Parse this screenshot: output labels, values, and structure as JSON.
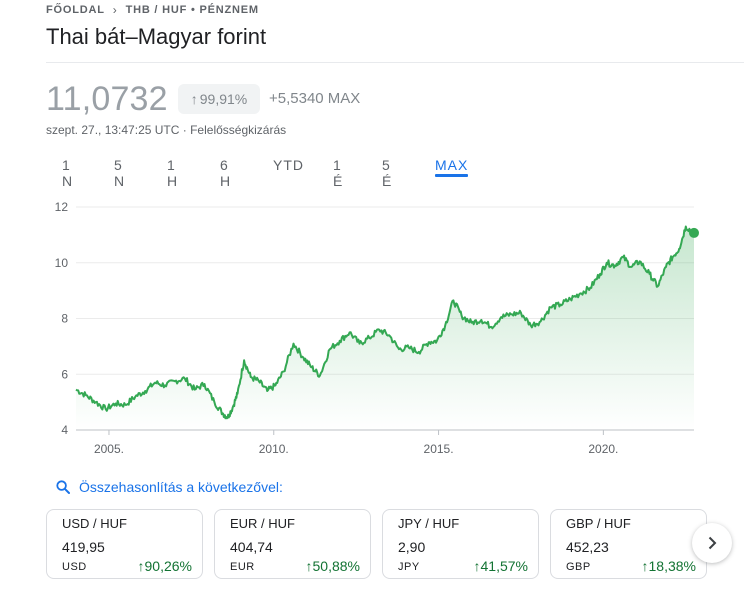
{
  "breadcrumb": {
    "home": "FŐOLDAL",
    "current": "THB / HUF • PÉNZNEM",
    "separator_icon": "chevron-right-icon"
  },
  "title": "Thai bát–Magyar forint",
  "quote": {
    "price": "11,0732",
    "percent_change": "99,91%",
    "absolute_change": "+5,5340 MAX",
    "timestamp": "szept. 27., 13:47:25 UTC",
    "separator": "·",
    "disclaimer": "Felelősségkizárás"
  },
  "tabs": [
    {
      "label": "1 N",
      "active": false
    },
    {
      "label": "5 N",
      "active": false
    },
    {
      "label": "1 H",
      "active": false
    },
    {
      "label": "6 H",
      "active": false
    },
    {
      "label": "YTD",
      "active": false
    },
    {
      "label": "1 É",
      "active": false
    },
    {
      "label": "5 É",
      "active": false
    },
    {
      "label": "MAX",
      "active": true
    }
  ],
  "chart_data": {
    "type": "area",
    "title": "",
    "xlabel": "",
    "ylabel": "",
    "ylim": [
      4,
      12
    ],
    "y_ticks": [
      4,
      6,
      8,
      10,
      12
    ],
    "x_ticks": [
      "2005.",
      "2010.",
      "2015.",
      "2020."
    ],
    "x_tick_years": [
      2005,
      2010,
      2015,
      2020
    ],
    "xlim": [
      2004.0,
      2022.75
    ],
    "grid": true,
    "line_color": "#34a853",
    "series": [
      {
        "x": [
          2004.0,
          2004.3,
          2004.6,
          2004.9,
          2005.2,
          2005.5,
          2005.8,
          2006.1,
          2006.4,
          2006.7,
          2007.0,
          2007.3,
          2007.6,
          2007.9,
          2008.2,
          2008.45,
          2008.6,
          2008.75,
          2008.9,
          2009.1,
          2009.3,
          2009.55,
          2009.8,
          2010.05,
          2010.3,
          2010.6,
          2010.9,
          2011.15,
          2011.4,
          2011.7,
          2012.0,
          2012.3,
          2012.6,
          2012.9,
          2013.2,
          2013.5,
          2013.8,
          2014.1,
          2014.4,
          2014.7,
          2014.95,
          2015.2,
          2015.45,
          2015.7,
          2016.0,
          2016.3,
          2016.6,
          2016.9,
          2017.2,
          2017.5,
          2017.8,
          2018.1,
          2018.4,
          2018.7,
          2019.0,
          2019.3,
          2019.6,
          2019.9,
          2020.1,
          2020.35,
          2020.6,
          2020.85,
          2021.1,
          2021.4,
          2021.65,
          2021.9,
          2022.1,
          2022.3,
          2022.5,
          2022.75
        ],
        "values": [
          5.45,
          5.25,
          5.0,
          4.75,
          4.95,
          4.9,
          5.2,
          5.4,
          5.7,
          5.6,
          5.75,
          5.85,
          5.45,
          5.65,
          5.0,
          4.6,
          4.45,
          4.8,
          5.3,
          6.5,
          5.9,
          5.75,
          5.4,
          5.6,
          6.1,
          7.1,
          6.6,
          6.25,
          5.95,
          6.9,
          7.2,
          7.5,
          7.1,
          7.3,
          7.6,
          7.4,
          6.9,
          6.95,
          6.8,
          7.15,
          7.2,
          7.75,
          8.65,
          8.1,
          7.85,
          7.95,
          7.7,
          8.05,
          8.15,
          8.2,
          7.75,
          7.9,
          8.4,
          8.5,
          8.7,
          8.9,
          9.1,
          9.6,
          10.0,
          9.9,
          10.2,
          9.85,
          10.05,
          9.6,
          9.15,
          9.85,
          10.2,
          10.5,
          11.3,
          11.07
        ]
      }
    ]
  },
  "compare": {
    "icon": "search-icon",
    "label": "Összehasonlítás a következővel:"
  },
  "cards": [
    {
      "pair": "USD / HUF",
      "value": "419,95",
      "code": "USD",
      "change": "90,26%"
    },
    {
      "pair": "EUR / HUF",
      "value": "404,74",
      "code": "EUR",
      "change": "50,88%"
    },
    {
      "pair": "JPY / HUF",
      "value": "2,90",
      "code": "JPY",
      "change": "41,57%"
    },
    {
      "pair": "GBP / HUF",
      "value": "452,23",
      "code": "GBP",
      "change": "18,38%"
    }
  ],
  "next_icon": "chevron-right-icon"
}
